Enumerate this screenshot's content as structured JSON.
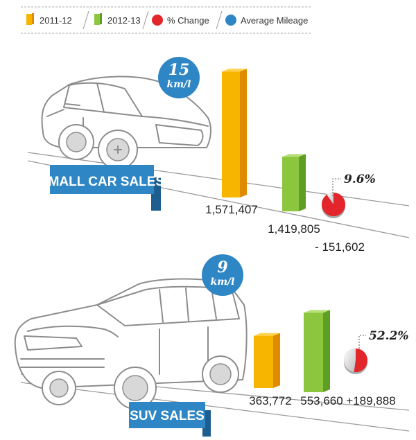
{
  "chart_data": [
    {
      "type": "bar",
      "title": "SMALL CAR SALES",
      "categories": [
        "2011-12",
        "2012-13"
      ],
      "values": [
        1571407,
        1419805
      ],
      "value_labels": [
        "1,571,407",
        "1,419,805"
      ],
      "change_label": "- 151,602",
      "percent_change": "9.6%",
      "percent_value": 9.6,
      "mileage": {
        "value": "15",
        "unit": "km/l"
      }
    },
    {
      "type": "bar",
      "title": "SUV SALES",
      "categories": [
        "2011-12",
        "2012-13"
      ],
      "values": [
        363772,
        553660
      ],
      "value_labels": [
        "363,772",
        "553,660"
      ],
      "change_label": "+189,888",
      "percent_change": "52.2%",
      "percent_value": 52.2,
      "mileage": {
        "value": "9",
        "unit": "km/l"
      }
    }
  ],
  "legend": [
    {
      "label": "2011-12",
      "kind": "bar",
      "color": "#f7b500"
    },
    {
      "label": "2012-13",
      "kind": "bar",
      "color": "#8cc63f"
    },
    {
      "label": "% Change",
      "kind": "dot",
      "color": "#e2262b"
    },
    {
      "label": "Average Mileage",
      "kind": "dot",
      "color": "#2f86c4"
    }
  ],
  "colors": {
    "year1": "#f7b500",
    "year1_dark": "#e08a00",
    "year1_top": "#ffd24a",
    "year2": "#8cc63f",
    "year2_dark": "#5f9e25",
    "year2_top": "#b7df7a",
    "change": "#e2262b",
    "banner": "#2f86c4"
  }
}
